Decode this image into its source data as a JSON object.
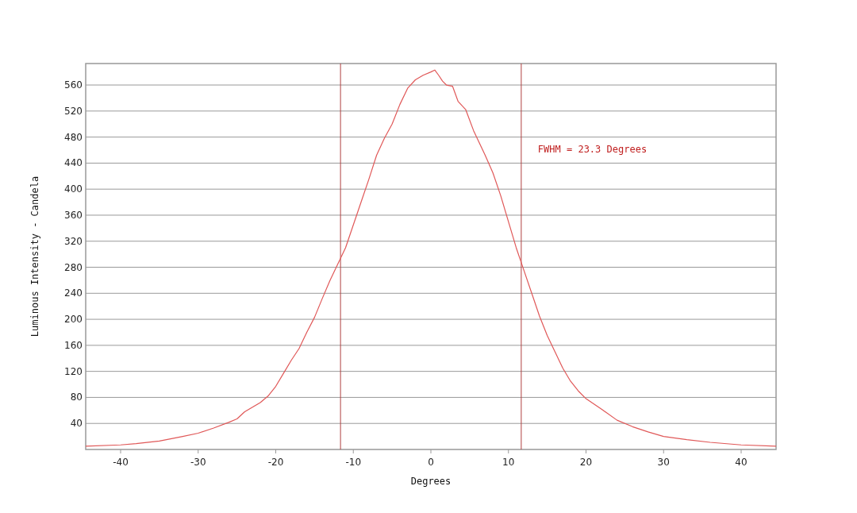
{
  "chart_data": {
    "type": "line",
    "xlabel": "Degrees",
    "ylabel": "Luminous Intensity - Candela",
    "x": [
      -44.5,
      -40,
      -38,
      -35,
      -32,
      -30,
      -28,
      -26,
      -25,
      -24,
      -22,
      -21,
      -20,
      -19,
      -18,
      -17,
      -16,
      -15,
      -14,
      -13,
      -12,
      -11,
      -10,
      -9,
      -8,
      -7,
      -6,
      -5,
      -4,
      -3,
      -2,
      -1,
      0,
      0.5,
      1,
      1.5,
      2,
      2.8,
      3.5,
      4.5,
      5.5,
      7,
      8,
      9,
      10,
      11,
      12,
      13,
      14,
      15,
      16,
      17,
      18,
      19,
      20,
      22,
      24,
      26,
      28,
      30,
      33,
      36,
      40,
      44.5
    ],
    "series": [
      {
        "color": "#e05858",
        "values": [
          5,
          7,
          9,
          13,
          20,
          25,
          33,
          42,
          47,
          58,
          72,
          82,
          97,
          117,
          137,
          155,
          180,
          203,
          232,
          260,
          285,
          310,
          345,
          380,
          415,
          452,
          478,
          500,
          530,
          555,
          568,
          575,
          580,
          583,
          575,
          566,
          560,
          558,
          535,
          522,
          490,
          452,
          425,
          390,
          350,
          310,
          275,
          240,
          205,
          175,
          150,
          125,
          105,
          90,
          78,
          62,
          45,
          35,
          27,
          20,
          15,
          11,
          7,
          5
        ]
      }
    ],
    "xlim": [
      -44.5,
      44.5
    ],
    "xticks": [
      -40,
      -30,
      -20,
      -10,
      0,
      10,
      20,
      30,
      40
    ],
    "ylim": [
      0,
      593
    ],
    "yticks": [
      40,
      80,
      120,
      160,
      200,
      240,
      280,
      320,
      360,
      400,
      440,
      480,
      520,
      560
    ],
    "grid": "y",
    "marker": "none",
    "line_style": "solid",
    "ref_lines": [
      {
        "axis": "x",
        "value": -11.65,
        "color": "#b04040"
      },
      {
        "axis": "x",
        "value": 11.65,
        "color": "#b04040"
      }
    ],
    "annotations": [
      "FWHM = 23.3 Degrees"
    ]
  }
}
